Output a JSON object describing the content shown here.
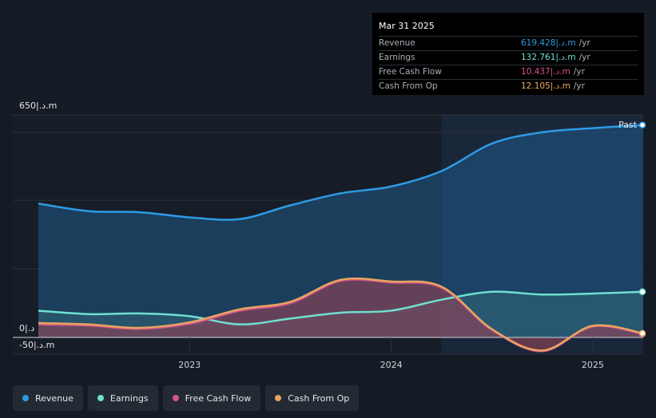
{
  "tooltip": {
    "date": "Mar 31 2025",
    "rows": [
      {
        "label": "Revenue",
        "value": "619.428|.د.m",
        "unit": "/yr",
        "color": "#2e9be6"
      },
      {
        "label": "Earnings",
        "value": "132.761|.د.m",
        "unit": "/yr",
        "color": "#6fe0d0"
      },
      {
        "label": "Free Cash Flow",
        "value": "10.437|.د.m",
        "unit": "/yr",
        "color": "#e0508a"
      },
      {
        "label": "Cash From Op",
        "value": "12.105|.د.m",
        "unit": "/yr",
        "color": "#f0a860"
      }
    ]
  },
  "axis": {
    "y_top": "650|.د.m",
    "y_zero": "0|.د",
    "y_bottom": "-50|.د.m",
    "past_label": "Past"
  },
  "legend": [
    {
      "label": "Revenue",
      "color": "#2e9be6"
    },
    {
      "label": "Earnings",
      "color": "#6fe0d0"
    },
    {
      "label": "Free Cash Flow",
      "color": "#d6558d"
    },
    {
      "label": "Cash From Op",
      "color": "#e8a45f"
    }
  ],
  "chart_data": {
    "type": "area",
    "x_ticks": [
      "2023",
      "2024",
      "2025"
    ],
    "x_tick_values": [
      2023.0,
      2024.0,
      2025.0
    ],
    "xlim": [
      2022.25,
      2025.25
    ],
    "ylim": [
      -50,
      650
    ],
    "past_start": 2024.25,
    "series": [
      {
        "name": "Revenue",
        "color": "#2e9be6",
        "x": [
          2022.25,
          2022.5,
          2022.75,
          2023.0,
          2023.25,
          2023.5,
          2023.75,
          2024.0,
          2024.25,
          2024.5,
          2024.75,
          2025.0,
          2025.25
        ],
        "y": [
          390,
          368,
          365,
          350,
          345,
          385,
          420,
          440,
          485,
          565,
          598,
          610,
          619
        ]
      },
      {
        "name": "Earnings",
        "color": "#6fe0d0",
        "x": [
          2022.25,
          2022.5,
          2022.75,
          2023.0,
          2023.25,
          2023.5,
          2023.75,
          2024.0,
          2024.25,
          2024.5,
          2024.75,
          2025.0,
          2025.25
        ],
        "y": [
          78,
          68,
          70,
          62,
          38,
          55,
          72,
          78,
          110,
          133,
          125,
          128,
          133
        ]
      },
      {
        "name": "Free Cash Flow",
        "color": "#d6558d",
        "x": [
          2022.25,
          2022.5,
          2022.75,
          2023.0,
          2023.25,
          2023.5,
          2023.75,
          2024.0,
          2024.25,
          2024.5,
          2024.75,
          2025.0,
          2025.25
        ],
        "y": [
          38,
          35,
          25,
          40,
          78,
          100,
          165,
          160,
          145,
          22,
          -40,
          32,
          10
        ]
      },
      {
        "name": "Cash From Op",
        "color": "#e8a45f",
        "x": [
          2022.25,
          2022.5,
          2022.75,
          2023.0,
          2023.25,
          2023.5,
          2023.75,
          2024.0,
          2024.25,
          2024.5,
          2024.75,
          2025.0,
          2025.25
        ],
        "y": [
          42,
          38,
          28,
          44,
          82,
          104,
          168,
          163,
          148,
          24,
          -38,
          34,
          12
        ]
      }
    ]
  }
}
